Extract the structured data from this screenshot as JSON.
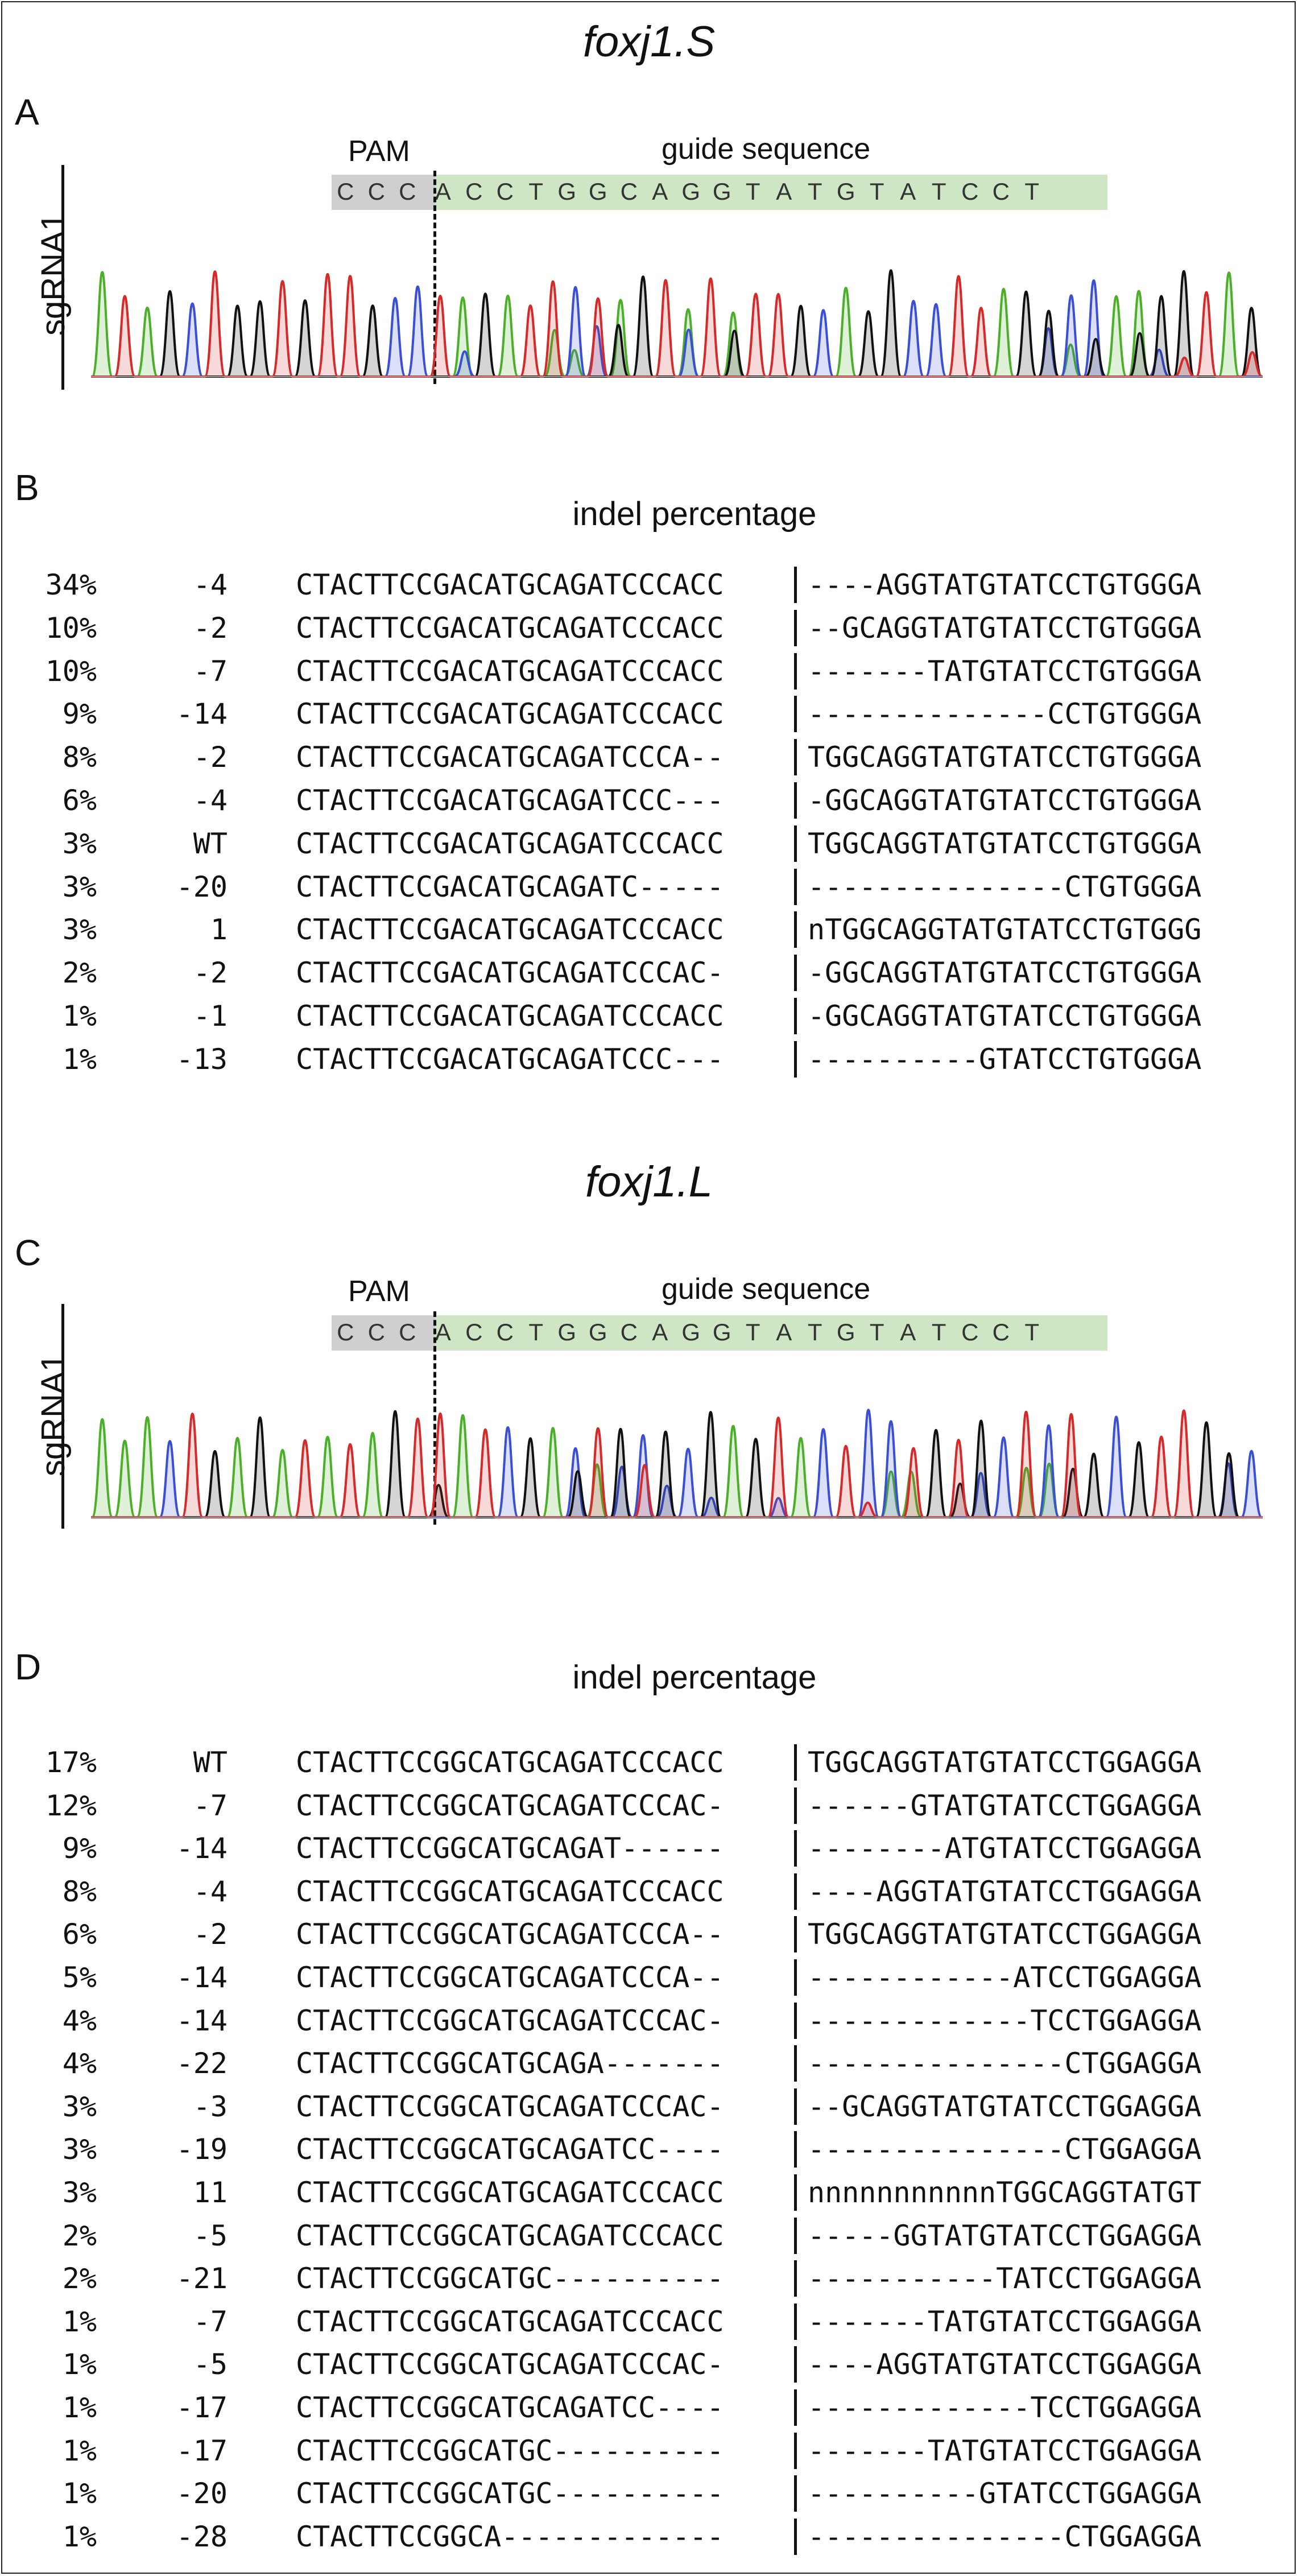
{
  "panels": [
    {
      "gene": "foxj1.S",
      "letter_chrom": "A",
      "letter_indel": "B",
      "sgrna": "sgRNA1",
      "pam_label": "PAM",
      "guide_label": "guide sequence",
      "pam": [
        "C",
        "C",
        "C"
      ],
      "guide": [
        "A",
        "C",
        "C",
        "T",
        "G",
        "G",
        "C",
        "A",
        "G",
        "G",
        "T",
        "A",
        "T",
        "G",
        "T",
        "A",
        "T",
        "C",
        "C",
        "T"
      ],
      "indel_title": "indel percentage",
      "rows": [
        {
          "pct": "34%",
          "size": "-4",
          "left": "CTACTTCCGACATGCAGATCCCACC",
          "right": "----AGGTATGTATCCTGTGGGA"
        },
        {
          "pct": "10%",
          "size": "-2",
          "left": "CTACTTCCGACATGCAGATCCCACC",
          "right": "--GCAGGTATGTATCCTGTGGGA"
        },
        {
          "pct": "10%",
          "size": "-7",
          "left": "CTACTTCCGACATGCAGATCCCACC",
          "right": "-------TATGTATCCTGTGGGA"
        },
        {
          "pct": "9%",
          "size": "-14",
          "left": "CTACTTCCGACATGCAGATCCCACC",
          "right": "--------------CCTGTGGGA"
        },
        {
          "pct": "8%",
          "size": "-2",
          "left": "CTACTTCCGACATGCAGATCCCA--",
          "right": "TGGCAGGTATGTATCCTGTGGGA"
        },
        {
          "pct": "6%",
          "size": "-4",
          "left": "CTACTTCCGACATGCAGATCCC---",
          "right": "-GGCAGGTATGTATCCTGTGGGA"
        },
        {
          "pct": "3%",
          "size": "WT",
          "left": "CTACTTCCGACATGCAGATCCCACC",
          "right": "TGGCAGGTATGTATCCTGTGGGA"
        },
        {
          "pct": "3%",
          "size": "-20",
          "left": "CTACTTCCGACATGCAGATC-----",
          "right": "---------------CTGTGGGA"
        },
        {
          "pct": "3%",
          "size": "1",
          "left": "CTACTTCCGACATGCAGATCCCACC",
          "right": "nTGGCAGGTATGTATCCTGTGGG"
        },
        {
          "pct": "2%",
          "size": "-2",
          "left": "CTACTTCCGACATGCAGATCCCAC-",
          "right": "-GGCAGGTATGTATCCTGTGGGA"
        },
        {
          "pct": "1%",
          "size": "-1",
          "left": "CTACTTCCGACATGCAGATCCCACC",
          "right": "-GGCAGGTATGTATCCTGTGGGA"
        },
        {
          "pct": "1%",
          "size": "-13",
          "left": "CTACTTCCGACATGCAGATCCC---",
          "right": "----------GTATCCTGTGGGA"
        }
      ]
    },
    {
      "gene": "foxj1.L",
      "letter_chrom": "C",
      "letter_indel": "D",
      "sgrna": "sgRNA1",
      "pam_label": "PAM",
      "guide_label": "guide sequence",
      "pam": [
        "C",
        "C",
        "C"
      ],
      "guide": [
        "A",
        "C",
        "C",
        "T",
        "G",
        "G",
        "C",
        "A",
        "G",
        "G",
        "T",
        "A",
        "T",
        "G",
        "T",
        "A",
        "T",
        "C",
        "C",
        "T"
      ],
      "indel_title": "indel percentage",
      "rows": [
        {
          "pct": "17%",
          "size": "WT",
          "left": "CTACTTCCGGCATGCAGATCCCACC",
          "right": "TGGCAGGTATGTATCCTGGAGGA"
        },
        {
          "pct": "12%",
          "size": "-7",
          "left": "CTACTTCCGGCATGCAGATCCCAC-",
          "right": "------GTATGTATCCTGGAGGA"
        },
        {
          "pct": "9%",
          "size": "-14",
          "left": "CTACTTCCGGCATGCAGAT------",
          "right": "--------ATGTATCCTGGAGGA"
        },
        {
          "pct": "8%",
          "size": "-4",
          "left": "CTACTTCCGGCATGCAGATCCCACC",
          "right": "----AGGTATGTATCCTGGAGGA"
        },
        {
          "pct": "6%",
          "size": "-2",
          "left": "CTACTTCCGGCATGCAGATCCCA--",
          "right": "TGGCAGGTATGTATCCTGGAGGA"
        },
        {
          "pct": "5%",
          "size": "-14",
          "left": "CTACTTCCGGCATGCAGATCCCA--",
          "right": "------------ATCCTGGAGGA"
        },
        {
          "pct": "4%",
          "size": "-14",
          "left": "CTACTTCCGGCATGCAGATCCCAC-",
          "right": "-------------TCCTGGAGGA"
        },
        {
          "pct": "4%",
          "size": "-22",
          "left": "CTACTTCCGGCATGCAGA-------",
          "right": "---------------CTGGAGGA"
        },
        {
          "pct": "3%",
          "size": "-3",
          "left": "CTACTTCCGGCATGCAGATCCCAC-",
          "right": "--GCAGGTATGTATCCTGGAGGA"
        },
        {
          "pct": "3%",
          "size": "-19",
          "left": "CTACTTCCGGCATGCAGATCC----",
          "right": "---------------CTGGAGGA"
        },
        {
          "pct": "3%",
          "size": "11",
          "left": "CTACTTCCGGCATGCAGATCCCACC",
          "right": "nnnnnnnnnnnTGGCAGGTATGT"
        },
        {
          "pct": "2%",
          "size": "-5",
          "left": "CTACTTCCGGCATGCAGATCCCACC",
          "right": "-----GGTATGTATCCTGGAGGA"
        },
        {
          "pct": "2%",
          "size": "-21",
          "left": "CTACTTCCGGCATGC----------",
          "right": "-----------TATCCTGGAGGA"
        },
        {
          "pct": "1%",
          "size": "-7",
          "left": "CTACTTCCGGCATGCAGATCCCACC",
          "right": "-------TATGTATCCTGGAGGA"
        },
        {
          "pct": "1%",
          "size": "-5",
          "left": "CTACTTCCGGCATGCAGATCCCAC-",
          "right": "----AGGTATGTATCCTGGAGGA"
        },
        {
          "pct": "1%",
          "size": "-17",
          "left": "CTACTTCCGGCATGCAGATCC----",
          "right": "-------------TCCTGGAGGA"
        },
        {
          "pct": "1%",
          "size": "-17",
          "left": "CTACTTCCGGCATGC----------",
          "right": "-------TATGTATCCTGGAGGA"
        },
        {
          "pct": "1%",
          "size": "-20",
          "left": "CTACTTCCGGCATGC----------",
          "right": "----------GTATCCTGGAGGA"
        },
        {
          "pct": "1%",
          "size": "-28",
          "left": "CTACTTCCGGCA-------------",
          "right": "---------------CTGGAGGA"
        }
      ]
    }
  ],
  "trace_colors": {
    "A": "#4caf2a",
    "C": "#3a4fd4",
    "G": "#111111",
    "T": "#d42a2a"
  }
}
